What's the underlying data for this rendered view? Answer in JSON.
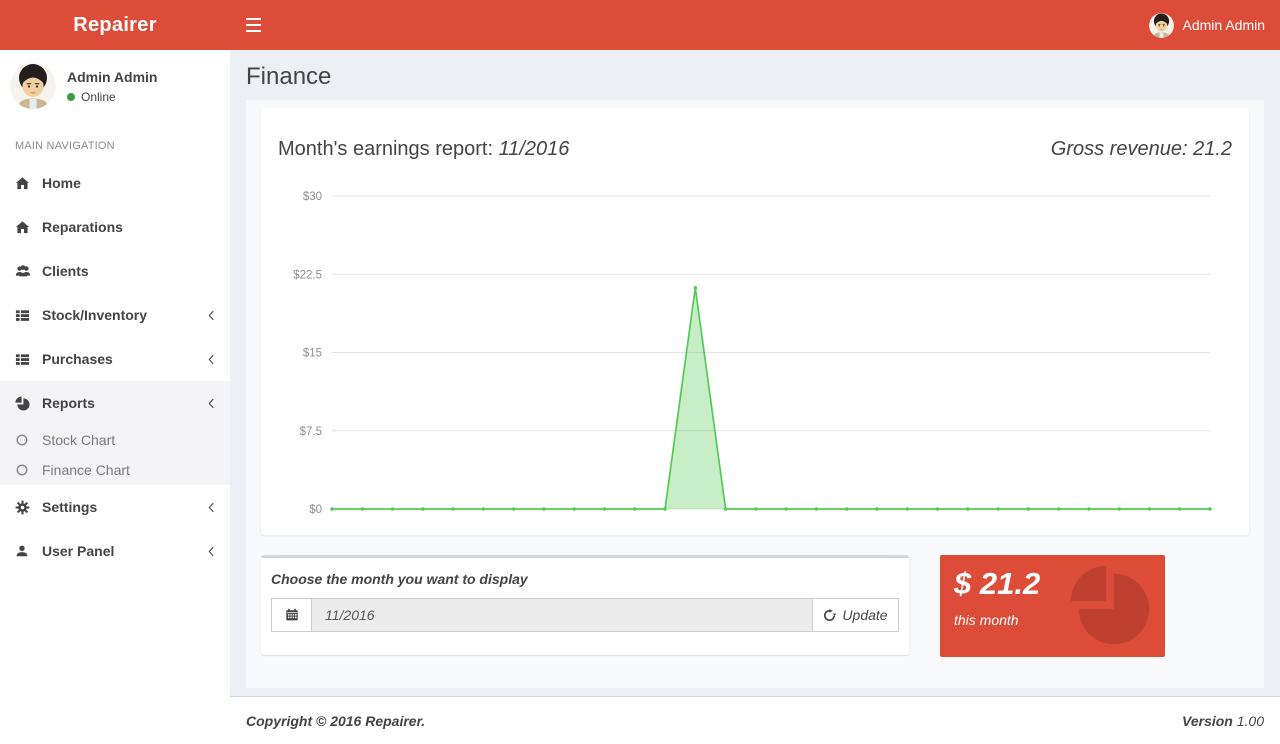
{
  "header": {
    "brand": "Repairer",
    "user": "Admin Admin"
  },
  "sidebar": {
    "user": {
      "name": "Admin Admin",
      "status": "Online"
    },
    "section_label": "MAIN NAVIGATION",
    "items": [
      {
        "label": "Home",
        "icon": "home-icon",
        "chevron": false
      },
      {
        "label": "Reparations",
        "icon": "home-icon",
        "chevron": false
      },
      {
        "label": "Clients",
        "icon": "users-icon",
        "chevron": false
      },
      {
        "label": "Stock/Inventory",
        "icon": "list-icon",
        "chevron": true
      },
      {
        "label": "Purchases",
        "icon": "list-icon",
        "chevron": true
      },
      {
        "label": "Reports",
        "icon": "pie-icon",
        "chevron": true,
        "active": true,
        "children": [
          "Stock Chart",
          "Finance Chart"
        ]
      },
      {
        "label": "Settings",
        "icon": "gear-icon",
        "chevron": true
      },
      {
        "label": "User Panel",
        "icon": "user-icon",
        "chevron": true
      }
    ]
  },
  "page": {
    "title": "Finance"
  },
  "chart_box": {
    "title_prefix": "Month's earnings report:",
    "title_month": "11/2016",
    "revenue_label": "Gross revenue: 21.2"
  },
  "chart_data": {
    "type": "area",
    "title": "Month's earnings report: 11/2016",
    "x": [
      1,
      2,
      3,
      4,
      5,
      6,
      7,
      8,
      9,
      10,
      11,
      12,
      13,
      14,
      15,
      16,
      17,
      18,
      19,
      20,
      21,
      22,
      23,
      24,
      25,
      26,
      27,
      28,
      29,
      30
    ],
    "values": [
      0,
      0,
      0,
      0,
      0,
      0,
      0,
      0,
      0,
      0,
      0,
      0,
      21.2,
      0,
      0,
      0,
      0,
      0,
      0,
      0,
      0,
      0,
      0,
      0,
      0,
      0,
      0,
      0,
      0,
      0
    ],
    "xlabel": "",
    "ylabel": "",
    "ylim": [
      0,
      30
    ],
    "yticks": [
      {
        "v": 0,
        "label": "$0"
      },
      {
        "v": 7.5,
        "label": "$7.5"
      },
      {
        "v": 15,
        "label": "$15"
      },
      {
        "v": 22.5,
        "label": "$22.5"
      },
      {
        "v": 30,
        "label": "$30"
      }
    ],
    "grid": true,
    "legend": false,
    "line_color": "#55c955",
    "fill_color": "rgba(85,201,85,0.32)",
    "peak": {
      "day": 13,
      "value": 21.2
    }
  },
  "form_box": {
    "label": "Choose the month you want to display",
    "input_value": "11/2016",
    "update_label": "Update"
  },
  "info_box": {
    "amount": "$ 21.2",
    "caption": "this month",
    "color": "#dd4b39"
  },
  "footer": {
    "copyright": "Copyright © 2016 Repairer.",
    "version_label": "Version",
    "version_value": "1.00"
  },
  "colors": {
    "accent": "#dd4b39",
    "success_dot": "#3c9d40",
    "chart_green": "#55c955"
  }
}
